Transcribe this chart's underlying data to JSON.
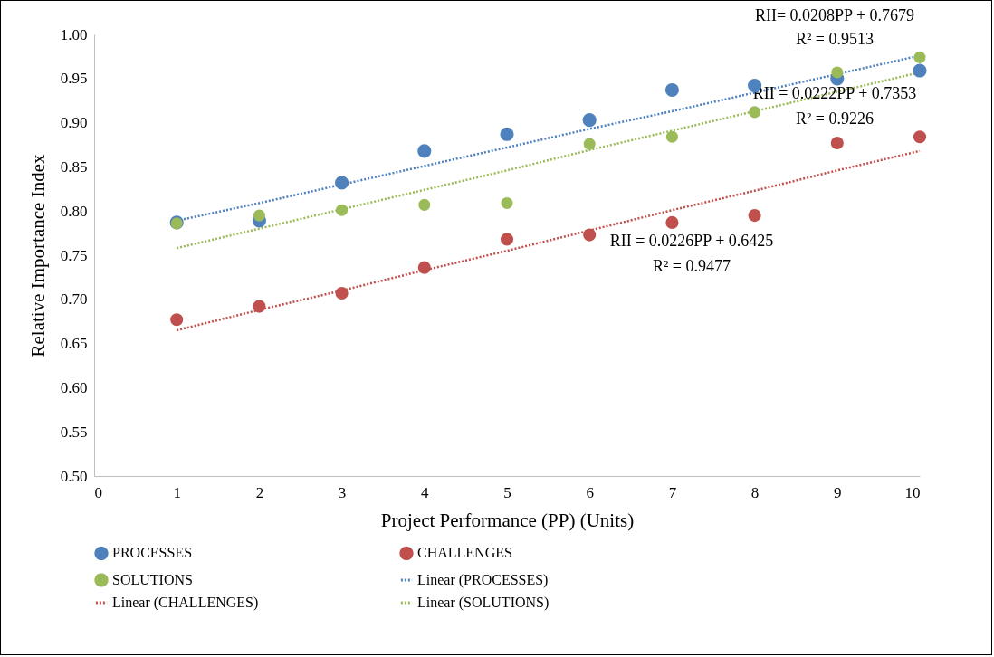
{
  "chart_data": {
    "type": "scatter",
    "xlabel": "Project Performance (PP) (Units)",
    "ylabel": "Relative Importance Index",
    "x": [
      1,
      2,
      3,
      4,
      5,
      6,
      7,
      8,
      9,
      10
    ],
    "xlim": [
      0,
      10
    ],
    "xticks": [
      0,
      1,
      2,
      3,
      4,
      5,
      6,
      7,
      8,
      9,
      10
    ],
    "ylim": [
      0.5,
      1.0
    ],
    "yticks": [
      {
        "value": 0.5,
        "label": "0.50"
      },
      {
        "value": 0.55,
        "label": "0.55"
      },
      {
        "value": 0.6,
        "label": "0.60"
      },
      {
        "value": 0.65,
        "label": "0.65"
      },
      {
        "value": 0.7,
        "label": "0.70"
      },
      {
        "value": 0.75,
        "label": "0.75"
      },
      {
        "value": 0.8,
        "label": "0.80"
      },
      {
        "value": 0.85,
        "label": "0.85"
      },
      {
        "value": 0.9,
        "label": "0.90"
      },
      {
        "value": 0.95,
        "label": "0.95"
      },
      {
        "value": 1.0,
        "label": "1.00"
      }
    ],
    "grid": false,
    "legend": "bottom",
    "series": [
      {
        "name": "PROCESSES",
        "type": "scatter",
        "marker": "circle",
        "color": "#4f81bd",
        "values": [
          0.787,
          0.789,
          0.832,
          0.868,
          0.887,
          0.903,
          0.937,
          0.942,
          0.95,
          0.959
        ]
      },
      {
        "name": "CHALLENGES",
        "type": "scatter",
        "marker": "circle",
        "color": "#c0504d",
        "values": [
          0.677,
          0.692,
          0.707,
          0.736,
          0.768,
          0.773,
          0.787,
          0.795,
          0.877,
          0.884
        ]
      },
      {
        "name": "SOLUTIONS",
        "type": "scatter",
        "marker": "circle",
        "color": "#9bbb59",
        "values": [
          0.786,
          0.795,
          0.801,
          0.807,
          0.809,
          0.876,
          0.884,
          0.912,
          0.957,
          0.974
        ]
      },
      {
        "name": "Linear (PROCESSES)",
        "type": "line",
        "line_style": "dotted",
        "color": "#4f81bd",
        "values": [
          0.789,
          0.809,
          0.83,
          0.851,
          0.872,
          0.893,
          0.913,
          0.934,
          0.955,
          0.976
        ]
      },
      {
        "name": "Linear (CHALLENGES)",
        "type": "line",
        "line_style": "dotted",
        "color": "#c0504d",
        "values": [
          0.665,
          0.688,
          0.71,
          0.733,
          0.755,
          0.778,
          0.801,
          0.823,
          0.846,
          0.868
        ]
      },
      {
        "name": "Linear (SOLUTIONS)",
        "type": "line",
        "line_style": "dotted",
        "color": "#9bbb59",
        "values": [
          0.758,
          0.78,
          0.802,
          0.824,
          0.846,
          0.869,
          0.891,
          0.913,
          0.935,
          0.957
        ]
      }
    ],
    "annotations": [
      "RII= 0.0208PP + 0.7679",
      "R² = 0.9513",
      "RII = 0.0222PP + 0.7353",
      "R² = 0.9226",
      "RII = 0.0226PP + 0.6425",
      "R² = 0.9477"
    ]
  }
}
